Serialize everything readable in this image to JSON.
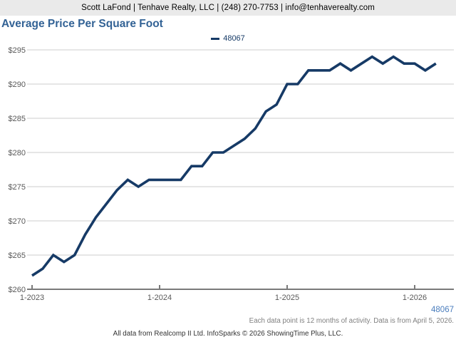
{
  "header": {
    "contact_line": "Scott LaFond | Tenhave Realty, LLC | (248) 270-7753 | info@tenhaverealty.com"
  },
  "title": "Average Price Per Square Foot",
  "legend": {
    "label": "48067"
  },
  "chart_data": {
    "type": "line",
    "title": "Average Price Per Square Foot",
    "x": [
      "1-2023",
      "2-2023",
      "3-2023",
      "4-2023",
      "5-2023",
      "6-2023",
      "7-2023",
      "8-2023",
      "9-2023",
      "10-2023",
      "11-2023",
      "12-2023",
      "1-2024",
      "2-2024",
      "3-2024",
      "4-2024",
      "5-2024",
      "6-2024",
      "7-2024",
      "8-2024",
      "9-2024",
      "10-2024",
      "11-2024",
      "12-2024",
      "1-2025",
      "2-2025",
      "3-2025",
      "4-2025",
      "5-2025",
      "6-2025",
      "7-2025",
      "8-2025",
      "9-2025",
      "10-2025",
      "11-2025",
      "12-2025",
      "1-2026",
      "2-2026",
      "3-2026"
    ],
    "series": [
      {
        "name": "48067",
        "color": "#163a66",
        "values": [
          262,
          263,
          265,
          264,
          265,
          268,
          270.5,
          272.5,
          274.5,
          276,
          275,
          276,
          276,
          276,
          276,
          278,
          278,
          280,
          280,
          281,
          282,
          283.5,
          286,
          287,
          290,
          290,
          292,
          292,
          292,
          293,
          292,
          293,
          294,
          293,
          294,
          293,
          293,
          292,
          293
        ]
      }
    ],
    "ylim": [
      260,
      295
    ],
    "y_tick_step": 5,
    "y_tick_prefix": "$",
    "x_tick_labels": [
      "1-2023",
      "1-2024",
      "1-2025",
      "1-2026"
    ],
    "x_tick_indices": [
      0,
      12,
      24,
      36
    ],
    "grid": true,
    "legend_position": "top-center"
  },
  "footer": {
    "zip_label": "48067",
    "note": "Each data point is 12 months of activity. Data is from April 5, 2026.",
    "attribution": "All data from Realcomp II Ltd. InfoSparks © 2026 ShowingTime Plus, LLC."
  },
  "colors": {
    "line": "#163a66",
    "title_blue": "#326295",
    "zip_blue": "#4a7dbd",
    "header_bg": "#eaeaea",
    "gridline": "#cccccc",
    "axis": "#7a7a7a",
    "tick_label": "#595959"
  }
}
